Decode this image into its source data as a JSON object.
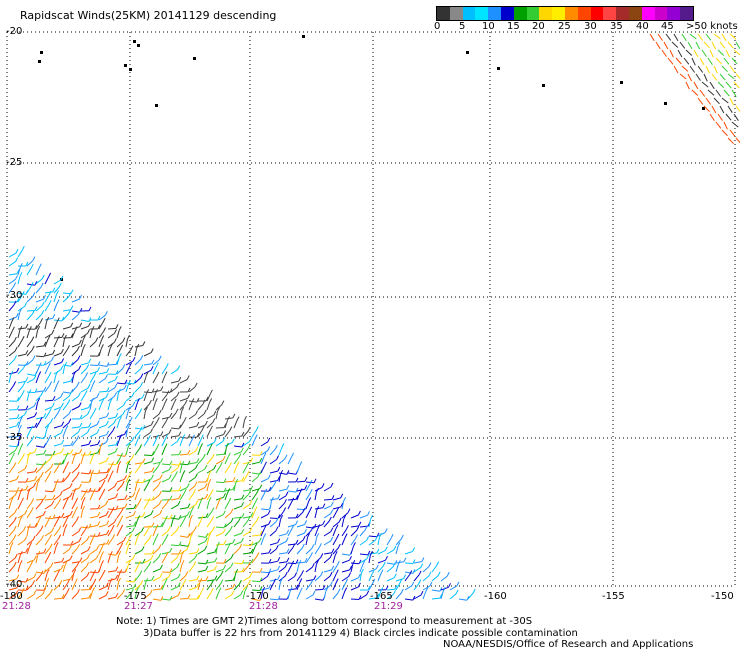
{
  "title": "Rapidscat Winds(25KM) 20141129 descending",
  "legend": {
    "colors": [
      "#333333",
      "#888888",
      "#00bfff",
      "#00e5ff",
      "#1e90ff",
      "#0000cd",
      "#00a000",
      "#33cc33",
      "#ffd700",
      "#ffee00",
      "#ff8c00",
      "#ff4500",
      "#ff0000",
      "#ff4444",
      "#a52a2a",
      "#8b4513",
      "#ff00ff",
      "#cc00cc",
      "#9400d3",
      "#551a8b"
    ],
    "labels": [
      "0",
      "5",
      "10",
      "15",
      "20",
      "25",
      "30",
      "35",
      "40",
      "45",
      ">50 knots"
    ]
  },
  "map": {
    "lat_labels": [
      "-20",
      "-25",
      "-30",
      "-35",
      "-40"
    ],
    "lon_labels": [
      "-180",
      "-175",
      "-170",
      "-165",
      "-160",
      "-155",
      "-150"
    ],
    "time_labels": [
      "21:28",
      "21:27",
      "21:28",
      "21:29"
    ]
  },
  "notes": {
    "line1": "Note: 1) Times are GMT 2)Times along bottom correspond to measurement at -30S",
    "line2": "3)Data buffer is 22 hrs from 20141129 4) Black circles indicate possible contamination",
    "credit": "NOAA/NESDIS/Office of Research and Applications"
  }
}
